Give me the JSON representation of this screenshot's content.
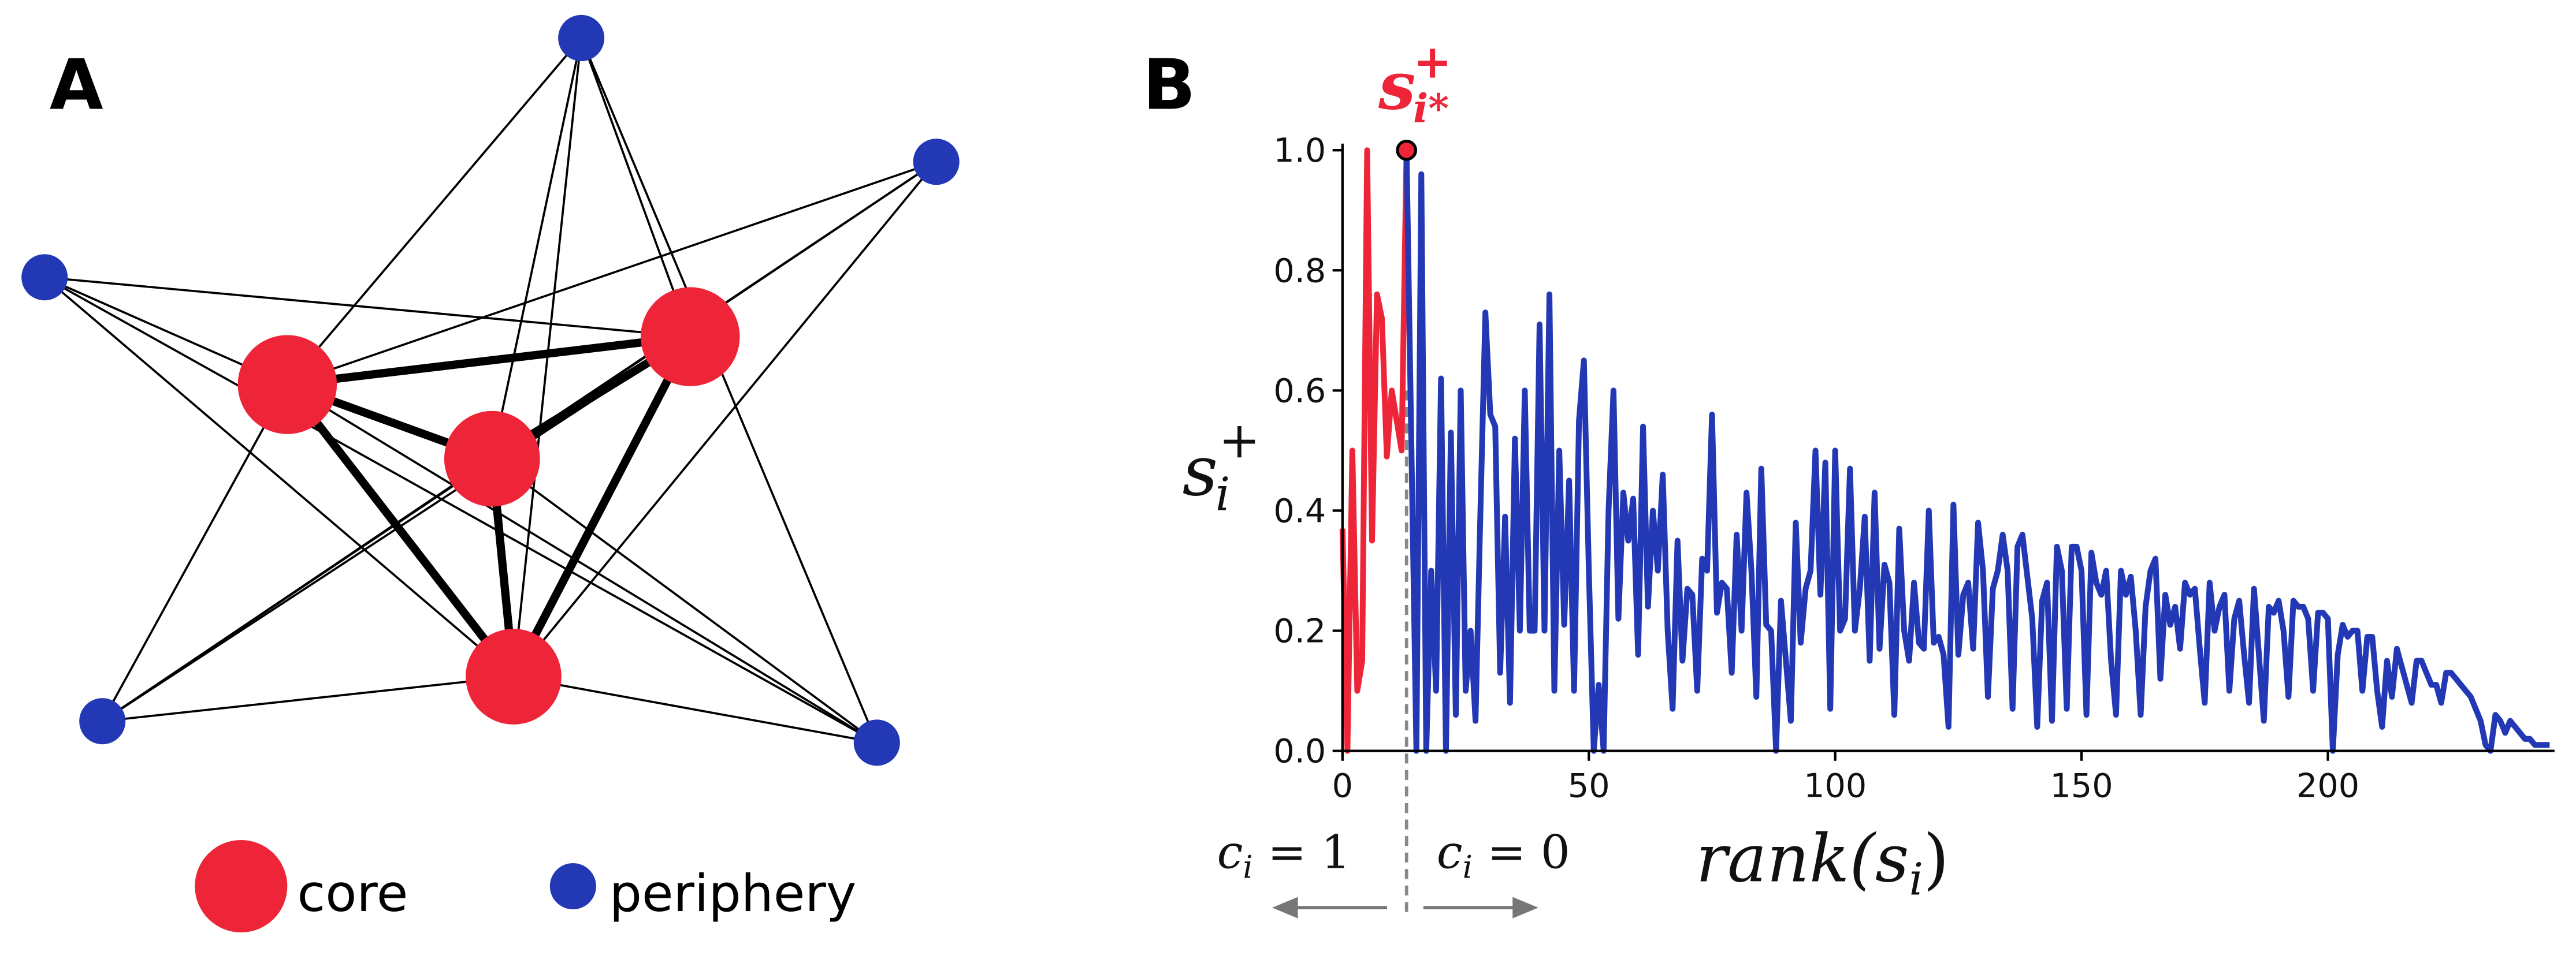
{
  "panels": [
    "A",
    "B"
  ],
  "legend": {
    "core": "core",
    "periphery": "periphery"
  },
  "chart_data": {
    "type": "line",
    "xlim": [
      0,
      246
    ],
    "ylim": [
      0,
      1
    ],
    "xticks": [
      0,
      50,
      100,
      150,
      200
    ],
    "yticks": [
      {
        "value": 0,
        "label": "0.0"
      },
      {
        "value": 0.2,
        "label": "0.2"
      },
      {
        "value": 0.4,
        "label": "0.4"
      },
      {
        "value": 0.6,
        "label": "0.6"
      },
      {
        "value": 0.8,
        "label": "0.8"
      },
      {
        "value": 1,
        "label": "1.0"
      }
    ],
    "ylabel": {
      "base": "s",
      "sub": "i",
      "sup": "+"
    },
    "xlabel": {
      "base": "rank(s",
      "sub": "i",
      "rest": ")"
    },
    "annotations": [
      {
        "base": "c",
        "sub": "i",
        "rest": " = 1"
      },
      {
        "base": "c",
        "sub": "i",
        "rest": " = 0"
      }
    ],
    "highlight": {
      "x": 13,
      "y": 1,
      "base": "s",
      "sub": "i*",
      "sup": "+",
      "color": "#ee2538"
    },
    "series": [
      {
        "color": "#ee2538",
        "x": [
          0,
          1,
          2,
          3,
          4,
          5,
          6,
          7,
          8,
          9,
          10,
          11,
          12,
          13
        ],
        "values": [
          0.37,
          0,
          0.5,
          0.1,
          0.15,
          1.0,
          0.35,
          0.76,
          0.72,
          0.49,
          0.6,
          0.55,
          0.5,
          1.0
        ]
      },
      {
        "color": "#2338b5",
        "x": [
          13,
          14,
          15,
          16,
          17,
          18,
          19,
          20,
          21,
          22,
          23,
          24,
          25,
          26,
          27,
          28,
          29,
          30,
          31,
          32,
          33,
          34,
          35,
          36,
          37,
          38,
          39,
          40,
          41,
          42,
          43,
          44,
          45,
          46,
          47,
          48,
          49,
          50,
          51,
          52,
          53,
          54,
          55,
          56,
          57,
          58,
          59,
          60,
          61,
          62,
          63,
          64,
          65,
          66,
          67,
          68,
          69,
          70,
          71,
          72,
          73,
          74,
          75,
          76,
          77,
          78,
          79,
          80,
          81,
          82,
          83,
          84,
          85,
          86,
          87,
          88,
          89,
          90,
          91,
          92,
          93,
          94,
          95,
          96,
          97,
          98,
          99,
          100,
          101,
          102,
          103,
          104,
          105,
          106,
          107,
          108,
          109,
          110,
          111,
          112,
          113,
          114,
          115,
          116,
          117,
          118,
          119,
          120,
          121,
          122,
          123,
          124,
          125,
          126,
          127,
          128,
          129,
          130,
          131,
          132,
          133,
          134,
          135,
          136,
          137,
          138,
          139,
          140,
          141,
          142,
          143,
          144,
          145,
          146,
          147,
          148,
          149,
          150,
          151,
          152,
          153,
          154,
          155,
          156,
          157,
          158,
          159,
          160,
          161,
          162,
          163,
          164,
          165,
          166,
          167,
          168,
          169,
          170,
          171,
          172,
          173,
          174,
          175,
          176,
          177,
          178,
          179,
          180,
          181,
          182,
          183,
          184,
          185,
          186,
          187,
          188,
          189,
          190,
          191,
          192,
          193,
          194,
          195,
          196,
          197,
          198,
          199,
          200,
          201,
          202,
          203,
          204,
          205,
          206,
          207,
          208,
          209,
          210,
          211,
          212,
          213,
          214,
          215,
          216,
          217,
          218,
          219,
          220,
          221,
          222,
          223,
          224,
          225,
          226,
          227,
          228,
          229,
          230,
          231,
          232,
          233,
          234,
          235,
          236,
          237,
          238,
          239,
          240,
          241,
          242,
          243,
          244,
          245
        ],
        "values": [
          1.0,
          0.5,
          0,
          0.96,
          0,
          0.3,
          0.1,
          0.62,
          0,
          0.53,
          0.06,
          0.6,
          0.1,
          0.2,
          0.05,
          0.4,
          0.73,
          0.56,
          0.54,
          0.13,
          0.39,
          0.08,
          0.52,
          0.2,
          0.6,
          0.2,
          0.2,
          0.71,
          0.2,
          0.76,
          0.1,
          0.5,
          0.21,
          0.45,
          0.1,
          0.55,
          0.65,
          0.3,
          0,
          0.11,
          0,
          0.4,
          0.6,
          0.22,
          0.43,
          0.35,
          0.42,
          0.16,
          0.54,
          0.24,
          0.4,
          0.3,
          0.46,
          0.2,
          0.07,
          0.35,
          0.15,
          0.27,
          0.26,
          0.1,
          0.32,
          0.3,
          0.56,
          0.23,
          0.28,
          0.27,
          0.13,
          0.36,
          0.2,
          0.43,
          0.3,
          0.09,
          0.47,
          0.21,
          0.2,
          0,
          0.25,
          0.15,
          0.05,
          0.38,
          0.18,
          0.27,
          0.3,
          0.5,
          0.26,
          0.48,
          0.07,
          0.5,
          0.2,
          0.22,
          0.47,
          0.2,
          0.27,
          0.39,
          0.15,
          0.43,
          0.17,
          0.31,
          0.28,
          0.06,
          0.37,
          0.2,
          0.15,
          0.28,
          0.18,
          0.17,
          0.4,
          0.18,
          0.19,
          0.16,
          0.04,
          0.41,
          0.16,
          0.26,
          0.28,
          0.17,
          0.38,
          0.3,
          0.09,
          0.27,
          0.3,
          0.36,
          0.3,
          0.07,
          0.34,
          0.36,
          0.29,
          0.22,
          0.04,
          0.25,
          0.28,
          0.05,
          0.34,
          0.3,
          0.07,
          0.34,
          0.34,
          0.3,
          0.06,
          0.33,
          0.28,
          0.26,
          0.3,
          0.15,
          0.06,
          0.3,
          0.26,
          0.29,
          0.2,
          0.06,
          0.24,
          0.3,
          0.32,
          0.12,
          0.26,
          0.21,
          0.24,
          0.17,
          0.28,
          0.26,
          0.27,
          0.17,
          0.08,
          0.28,
          0.2,
          0.24,
          0.26,
          0.1,
          0.22,
          0.25,
          0.16,
          0.08,
          0.27,
          0.16,
          0.05,
          0.24,
          0.23,
          0.25,
          0.2,
          0.09,
          0.25,
          0.24,
          0.24,
          0.22,
          0.1,
          0.23,
          0.23,
          0.22,
          0,
          0.16,
          0.21,
          0.19,
          0.2,
          0.2,
          0.1,
          0.19,
          0.19,
          0.1,
          0.04,
          0.15,
          0.09,
          0.17,
          0.14,
          0.11,
          0.08,
          0.15,
          0.15,
          0.13,
          0.11,
          0.11,
          0.08,
          0.13,
          0.13,
          0.12,
          0.11,
          0.1,
          0.09,
          0.07,
          0.05,
          0.01,
          0,
          0.06,
          0.05,
          0.03,
          0.05,
          0.04,
          0.03,
          0.02,
          0.02,
          0.01,
          0.01,
          0.01,
          0.01
        ]
      }
    ]
  }
}
